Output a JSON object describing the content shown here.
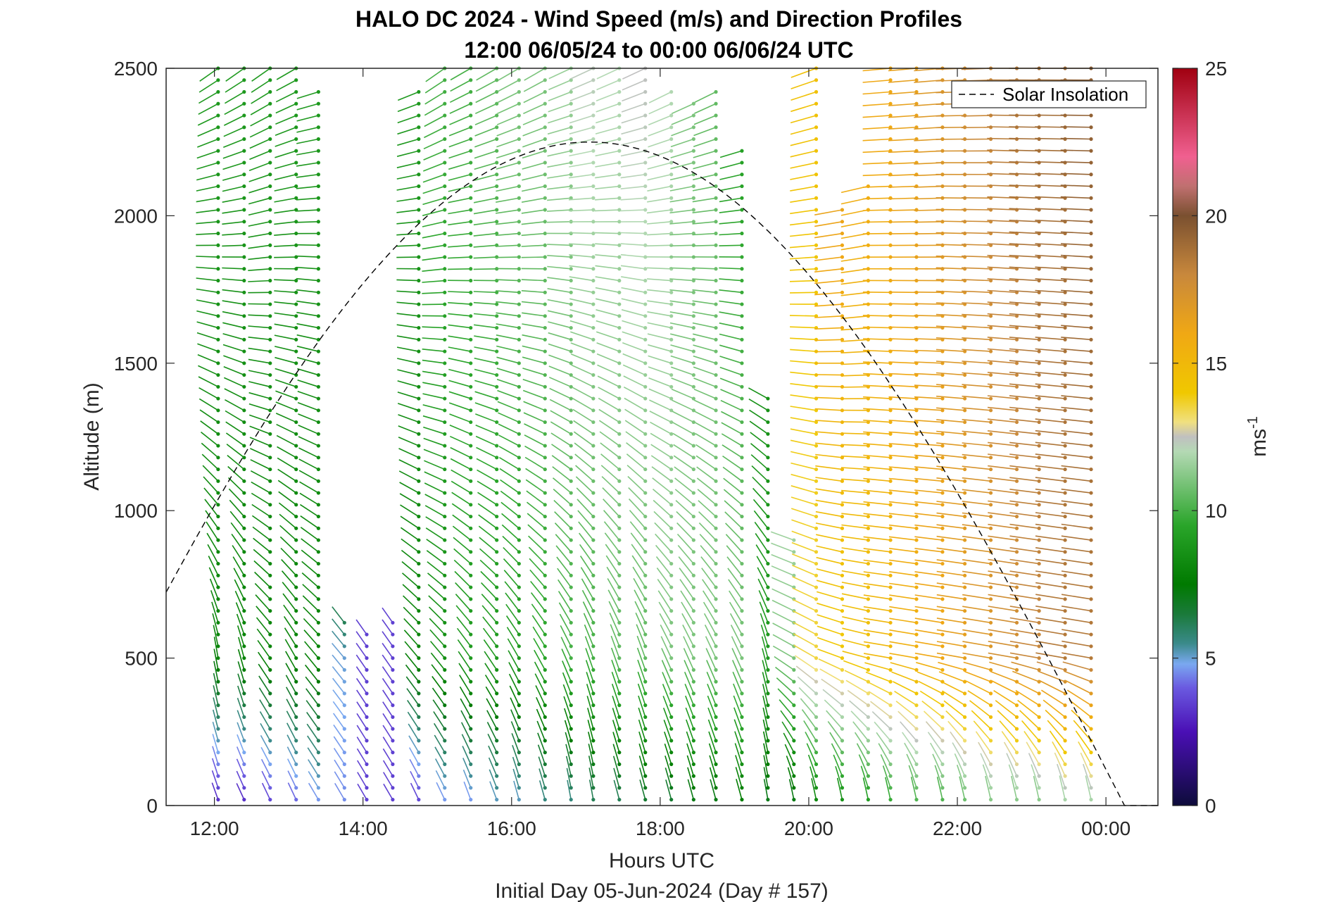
{
  "chart_data": {
    "type": "wind-barb-profile",
    "title_line1": "HALO DC 2024 - Wind Speed (m/s) and Direction Profiles",
    "title_line2": "12:00 06/05/24 to 00:00 06/06/24  UTC",
    "xlabel": "Hours UTC",
    "xlabel2": "Initial Day 05-Jun-2024 (Day # 157)",
    "ylabel": "Altitude (m)",
    "x_ticks": [
      "12:00",
      "14:00",
      "16:00",
      "18:00",
      "20:00",
      "22:00",
      "00:00"
    ],
    "x_tick_hours": [
      12,
      14,
      16,
      18,
      20,
      22,
      24
    ],
    "xlim_hours": [
      11.35,
      24.7
    ],
    "y_ticks": [
      0,
      500,
      1000,
      1500,
      2000,
      2500
    ],
    "ylim": [
      0,
      2500
    ],
    "colorbar": {
      "label": "ms",
      "label_sup": "-1",
      "ticks": [
        0,
        5,
        10,
        15,
        20,
        25
      ],
      "range": [
        0,
        25
      ],
      "stops": [
        {
          "v": 0,
          "c": "#0d0b3a"
        },
        {
          "v": 2.5,
          "c": "#4a0fb5"
        },
        {
          "v": 4,
          "c": "#6a5ae0"
        },
        {
          "v": 4.8,
          "c": "#7aa8f0"
        },
        {
          "v": 5.5,
          "c": "#3a8a8a"
        },
        {
          "v": 6.5,
          "c": "#1a7a3a"
        },
        {
          "v": 7.5,
          "c": "#007a00"
        },
        {
          "v": 9.5,
          "c": "#2aa52a"
        },
        {
          "v": 11,
          "c": "#7cc47c"
        },
        {
          "v": 12,
          "c": "#b4d9b4"
        },
        {
          "v": 12.5,
          "c": "#c0c0c0"
        },
        {
          "v": 13,
          "c": "#f0e080"
        },
        {
          "v": 14,
          "c": "#f0c800"
        },
        {
          "v": 16,
          "c": "#f0a814"
        },
        {
          "v": 18,
          "c": "#c8883c"
        },
        {
          "v": 20,
          "c": "#7a5030"
        },
        {
          "v": 21,
          "c": "#c07070"
        },
        {
          "v": 22,
          "c": "#f06090"
        },
        {
          "v": 25,
          "c": "#a00010"
        }
      ]
    },
    "legend": [
      {
        "label": "Solar Insolation",
        "style": "dashed",
        "color": "#000000"
      }
    ],
    "solar_insolation": {
      "peak_hour": 17.05,
      "peak_alt": 2250,
      "half_width_hours": 7.2
    },
    "wind_profiles": [
      {
        "t": 12.05,
        "top": 2500,
        "low_dir": 340,
        "mid_dir": 350,
        "top_dir": 235,
        "low_spd": 3,
        "mid_spd": 8,
        "top_spd": 9
      },
      {
        "t": 12.4,
        "top": 2500,
        "low_dir": 335,
        "mid_dir": 345,
        "top_dir": 235,
        "low_spd": 3,
        "mid_spd": 8,
        "top_spd": 9
      },
      {
        "t": 12.75,
        "top": 2500,
        "low_dir": 335,
        "mid_dir": 325,
        "top_dir": 235,
        "low_spd": 3.5,
        "mid_spd": 8,
        "top_spd": 9
      },
      {
        "t": 13.1,
        "top": 2500,
        "low_dir": 335,
        "mid_dir": 330,
        "top_dir": 240,
        "low_spd": 4,
        "mid_spd": 8,
        "top_spd": 9
      },
      {
        "t": 13.4,
        "top": 2450,
        "low_dir": 330,
        "mid_dir": 320,
        "top_dir": 250,
        "low_spd": 4.5,
        "mid_spd": 8,
        "top_spd": 9
      },
      {
        "t": 13.75,
        "top": 620,
        "low_dir": 330,
        "mid_dir": 320,
        "top_dir": 0,
        "low_spd": 4.5,
        "mid_spd": 5,
        "top_spd": 24
      },
      {
        "t": 14.05,
        "top": 580,
        "low_dir": 330,
        "mid_dir": 325,
        "top_dir": 320,
        "low_spd": 3.5,
        "mid_spd": 3.5,
        "top_spd": 3.5
      },
      {
        "t": 14.4,
        "top": 650,
        "low_dir": 330,
        "mid_dir": 325,
        "top_dir": 320,
        "low_spd": 3.5,
        "mid_spd": 3.5,
        "top_spd": 3.5
      },
      {
        "t": 14.75,
        "top": 2450,
        "low_dir": 335,
        "mid_dir": 320,
        "top_dir": 245,
        "low_spd": 3.5,
        "mid_spd": 8,
        "top_spd": 9
      },
      {
        "t": 15.1,
        "top": 2500,
        "low_dir": 335,
        "mid_dir": 320,
        "top_dir": 235,
        "low_spd": 4.5,
        "mid_spd": 8.5,
        "top_spd": 10
      },
      {
        "t": 15.45,
        "top": 2500,
        "low_dir": 340,
        "mid_dir": 325,
        "top_dir": 240,
        "low_spd": 4.5,
        "mid_spd": 9,
        "top_spd": 10
      },
      {
        "t": 15.8,
        "top": 2500,
        "low_dir": 340,
        "mid_dir": 325,
        "top_dir": 240,
        "low_spd": 5,
        "mid_spd": 9,
        "top_spd": 10.5
      },
      {
        "t": 16.1,
        "top": 2500,
        "low_dir": 345,
        "mid_dir": 330,
        "top_dir": 240,
        "low_spd": 5,
        "mid_spd": 9,
        "top_spd": 11
      },
      {
        "t": 16.45,
        "top": 2500,
        "low_dir": 345,
        "mid_dir": 330,
        "top_dir": 240,
        "low_spd": 5.5,
        "mid_spd": 9.5,
        "top_spd": 11
      },
      {
        "t": 16.8,
        "top": 2500,
        "low_dir": 350,
        "mid_dir": 335,
        "top_dir": 245,
        "low_spd": 5.5,
        "mid_spd": 10,
        "top_spd": 11.5
      },
      {
        "t": 17.1,
        "top": 2500,
        "low_dir": 350,
        "mid_dir": 340,
        "top_dir": 245,
        "low_spd": 6,
        "mid_spd": 10,
        "top_spd": 12.3
      },
      {
        "t": 17.45,
        "top": 2500,
        "low_dir": 345,
        "mid_dir": 340,
        "top_dir": 245,
        "low_spd": 6,
        "mid_spd": 10.5,
        "top_spd": 12
      },
      {
        "t": 17.8,
        "top": 2500,
        "low_dir": 345,
        "mid_dir": 340,
        "top_dir": 245,
        "low_spd": 6.5,
        "mid_spd": 10.5,
        "top_spd": 12.5
      },
      {
        "t": 18.15,
        "top": 2450,
        "low_dir": 345,
        "mid_dir": 335,
        "top_dir": 240,
        "low_spd": 6.5,
        "mid_spd": 11,
        "top_spd": 12
      },
      {
        "t": 18.45,
        "top": 2400,
        "low_dir": 345,
        "mid_dir": 335,
        "top_dir": 240,
        "low_spd": 7,
        "mid_spd": 11,
        "top_spd": 11
      },
      {
        "t": 18.75,
        "top": 2450,
        "low_dir": 345,
        "mid_dir": 335,
        "top_dir": 240,
        "low_spd": 7,
        "mid_spd": 11,
        "top_spd": 10.5
      },
      {
        "t": 19.1,
        "top": 2230,
        "low_dir": 345,
        "mid_dir": 335,
        "top_dir": 240,
        "low_spd": 7.5,
        "mid_spd": 11,
        "top_spd": 9
      },
      {
        "t": 19.45,
        "top": 1400,
        "low_dir": 350,
        "mid_dir": 345,
        "top_dir": 240,
        "low_spd": 7,
        "mid_spd": 9,
        "top_spd": 8
      },
      {
        "t": 19.8,
        "top": 900,
        "low_dir": 350,
        "mid_dir": 300,
        "top_dir": 250,
        "low_spd": 7,
        "mid_spd": 11,
        "top_spd": 14
      },
      {
        "t": 20.1,
        "top": 2500,
        "low_dir": 350,
        "mid_dir": 300,
        "top_dir": 250,
        "low_spd": 8,
        "mid_spd": 13.5,
        "top_spd": 14.5
      },
      {
        "t": 20.45,
        "top": 2050,
        "low_dir": 350,
        "mid_dir": 290,
        "top_dir": 250,
        "low_spd": 8.5,
        "mid_spd": 14,
        "top_spd": 17
      },
      {
        "t": 20.8,
        "top": 2100,
        "low_dir": 350,
        "mid_dir": 285,
        "top_dir": 250,
        "low_spd": 9,
        "mid_spd": 14.5,
        "top_spd": 16
      },
      {
        "t": 21.1,
        "top": 2500,
        "low_dir": 350,
        "mid_dir": 280,
        "top_dir": 265,
        "low_spd": 9.5,
        "mid_spd": 15,
        "top_spd": 16
      },
      {
        "t": 21.45,
        "top": 2500,
        "low_dir": 350,
        "mid_dir": 280,
        "top_dir": 265,
        "low_spd": 10,
        "mid_spd": 15.5,
        "top_spd": 16.5
      },
      {
        "t": 21.8,
        "top": 2500,
        "low_dir": 350,
        "mid_dir": 280,
        "top_dir": 265,
        "low_spd": 10,
        "mid_spd": 16,
        "top_spd": 17
      },
      {
        "t": 22.1,
        "top": 2500,
        "low_dir": 350,
        "mid_dir": 280,
        "top_dir": 268,
        "low_spd": 10.5,
        "mid_spd": 16.5,
        "top_spd": 17.5
      },
      {
        "t": 22.45,
        "top": 2500,
        "low_dir": 350,
        "mid_dir": 280,
        "top_dir": 268,
        "low_spd": 11,
        "mid_spd": 17,
        "top_spd": 18
      },
      {
        "t": 22.8,
        "top": 2500,
        "low_dir": 350,
        "mid_dir": 280,
        "top_dir": 270,
        "low_spd": 11,
        "mid_spd": 17.5,
        "top_spd": 18.5
      },
      {
        "t": 23.1,
        "top": 2500,
        "low_dir": 350,
        "mid_dir": 280,
        "top_dir": 270,
        "low_spd": 11,
        "mid_spd": 18,
        "top_spd": 19
      },
      {
        "t": 23.45,
        "top": 2500,
        "low_dir": 350,
        "mid_dir": 280,
        "top_dir": 270,
        "low_spd": 11.5,
        "mid_spd": 18.5,
        "top_spd": 19
      },
      {
        "t": 23.8,
        "top": 2500,
        "low_dir": 350,
        "mid_dir": 280,
        "top_dir": 270,
        "low_spd": 11.5,
        "mid_spd": 18.5,
        "top_spd": 19.5
      }
    ]
  }
}
